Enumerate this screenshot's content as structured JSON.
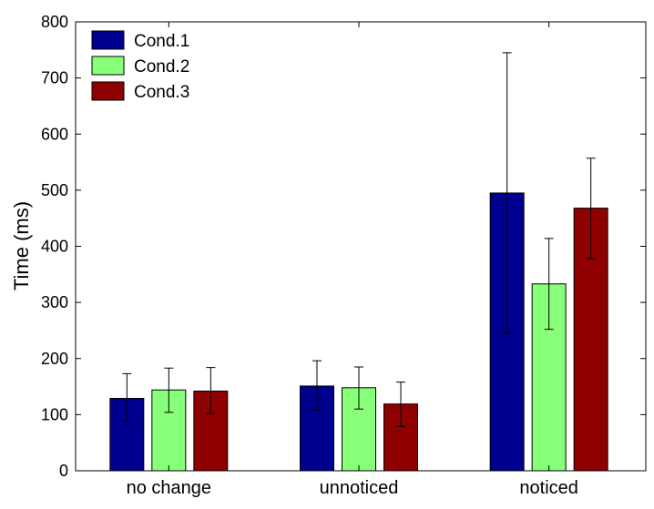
{
  "chart_data": {
    "type": "bar",
    "title": "",
    "xlabel": "",
    "ylabel": "Time (ms)",
    "ylim": [
      0,
      800
    ],
    "yticks": [
      0,
      100,
      200,
      300,
      400,
      500,
      600,
      700,
      800
    ],
    "categories": [
      "no change",
      "unnoticed",
      "noticed"
    ],
    "grid": false,
    "legend_position": "top-left",
    "series": [
      {
        "name": "Cond.1",
        "color": "#00008f",
        "values": [
          129,
          151,
          495
        ],
        "error_low": [
          88,
          108,
          245
        ],
        "error_high": [
          173,
          196,
          745
        ]
      },
      {
        "name": "Cond.2",
        "color": "#87ff78",
        "values": [
          144,
          148,
          333
        ],
        "error_low": [
          104,
          110,
          252
        ],
        "error_high": [
          183,
          185,
          414
        ]
      },
      {
        "name": "Cond.3",
        "color": "#8f0000",
        "values": [
          142,
          119,
          468
        ],
        "error_low": [
          102,
          79,
          378
        ],
        "error_high": [
          184,
          158,
          557
        ]
      }
    ]
  }
}
